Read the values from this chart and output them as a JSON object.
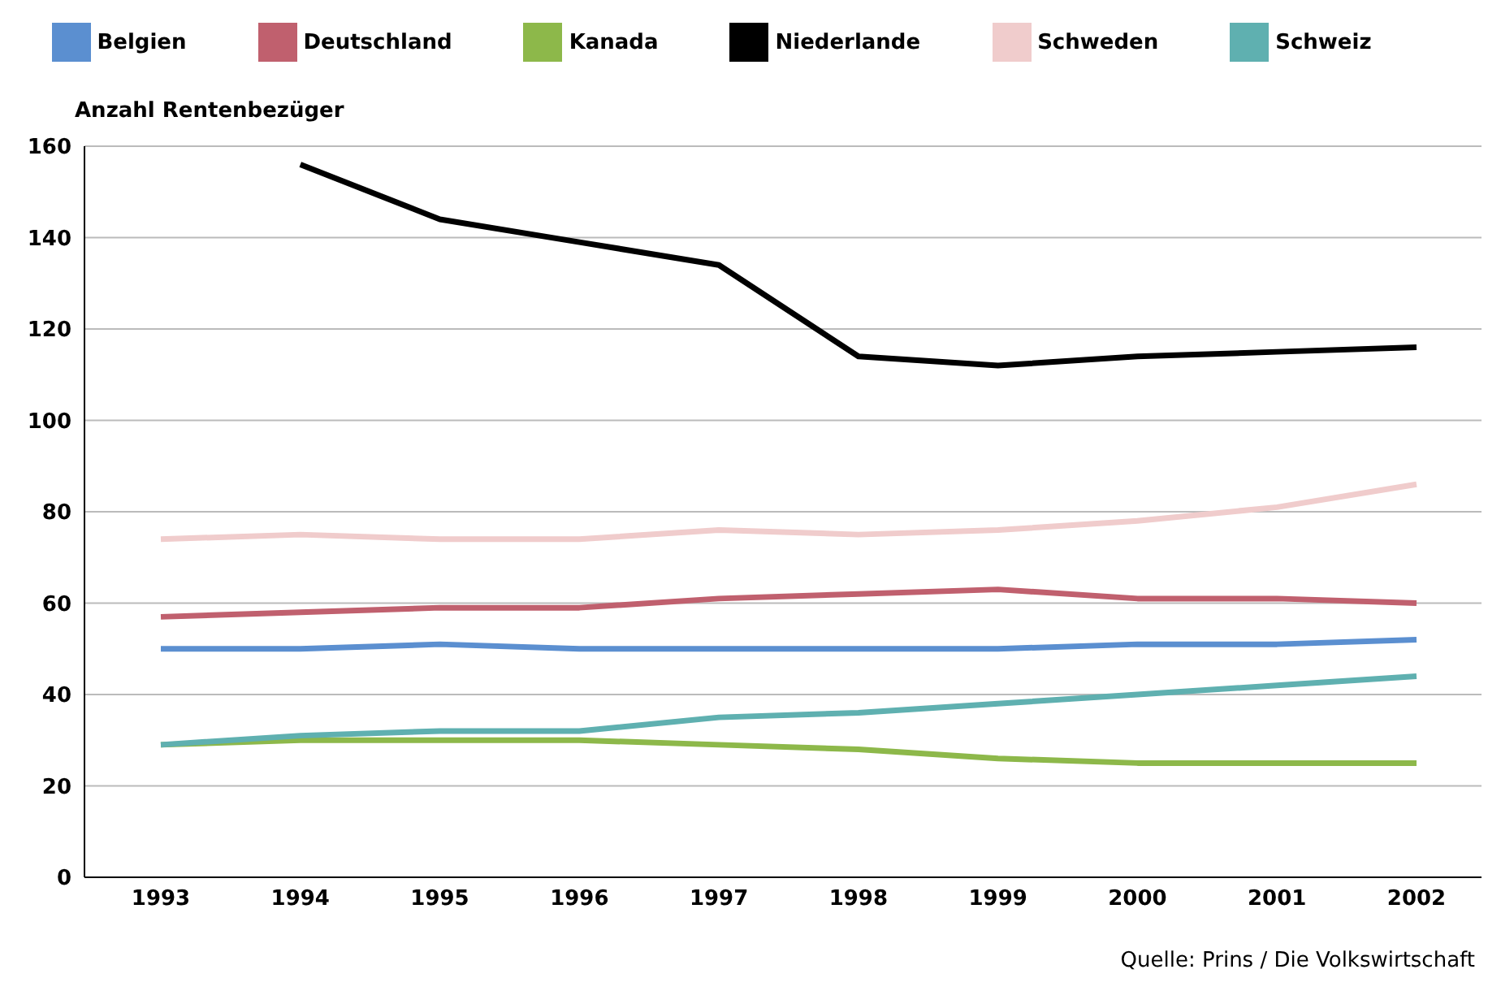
{
  "chart_data": {
    "type": "line",
    "ylabel": "Anzahl Rentenbezüger",
    "categories": [
      "1993",
      "1994",
      "1995",
      "1996",
      "1997",
      "1998",
      "1999",
      "2000",
      "2001",
      "2002"
    ],
    "series": [
      {
        "name": "Belgien",
        "color": "#5b8fd0",
        "values": [
          50,
          50,
          51,
          50,
          50,
          50,
          50,
          51,
          51,
          52
        ]
      },
      {
        "name": "Deutschland",
        "color": "#c0606e",
        "values": [
          57,
          58,
          59,
          59,
          61,
          62,
          63,
          61,
          61,
          60
        ]
      },
      {
        "name": "Kanada",
        "color": "#8db84a",
        "values": [
          29,
          30,
          30,
          30,
          29,
          28,
          26,
          25,
          25,
          25
        ]
      },
      {
        "name": "Niederlande",
        "color": "#000000",
        "values": [
          null,
          156,
          144,
          139,
          134,
          114,
          112,
          114,
          115,
          116
        ]
      },
      {
        "name": "Schweden",
        "color": "#f0cccc",
        "values": [
          74,
          75,
          74,
          74,
          76,
          75,
          76,
          78,
          81,
          86
        ]
      },
      {
        "name": "Schweiz",
        "color": "#5fb0b0",
        "values": [
          29,
          31,
          32,
          32,
          35,
          36,
          38,
          40,
          42,
          44
        ]
      }
    ],
    "ylim": [
      0,
      160
    ],
    "yticks": [
      0,
      20,
      40,
      60,
      80,
      100,
      120,
      140,
      160
    ],
    "grid": "y",
    "legend": "top",
    "marker": "none",
    "line_style": "solid",
    "annotations": [
      "Quelle: Prins / Die Volkswirtschaft"
    ]
  }
}
